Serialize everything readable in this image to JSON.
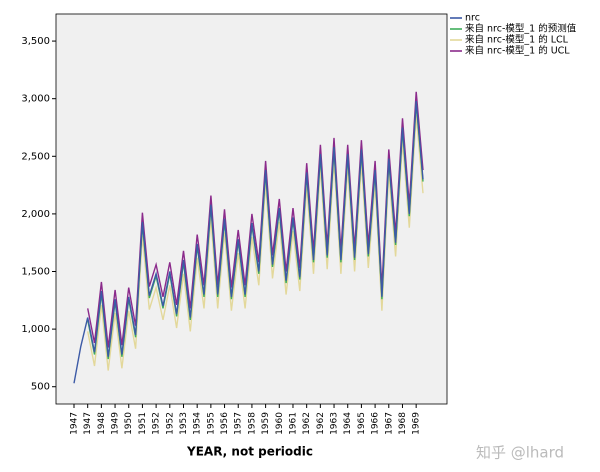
{
  "chart_data": {
    "type": "line",
    "x_label": "YEAR, not periodic",
    "watermark": "知乎 @lhard",
    "categories": [
      "1947",
      null,
      "1947",
      null,
      "1948",
      null,
      "1949",
      null,
      "1950",
      null,
      "1951",
      null,
      "1952",
      null,
      "1952",
      null,
      "1953",
      null,
      "1954",
      null,
      "1955",
      null,
      "1956",
      null,
      "1957",
      null,
      "1958",
      null,
      "1959",
      null,
      "1960",
      null,
      "1961",
      null,
      "1962",
      null,
      "1962",
      null,
      "1963",
      null,
      "1964",
      null,
      "1965",
      null,
      "1966",
      null,
      "1967",
      null,
      "1968",
      null,
      "1969",
      null
    ],
    "series": [
      {
        "name": "来自 nrc-模型_1 的 UCL",
        "color": "#8b2a8b",
        "values": [
          null,
          null,
          1180,
          880,
          1410,
          840,
          1340,
          860,
          1360,
          1030,
          2010,
          1370,
          1560,
          1280,
          1580,
          1210,
          1680,
          1180,
          1820,
          1380,
          2160,
          1380,
          2040,
          1360,
          1860,
          1380,
          2000,
          1580,
          2460,
          1640,
          2130,
          1500,
          2050,
          1530,
          2440,
          1680,
          2600,
          1720,
          2660,
          1680,
          2600,
          1700,
          2640,
          1730,
          2460,
          1360,
          2560,
          1830,
          2830,
          2080,
          3060,
          2380
        ]
      },
      {
        "name": "来自 nrc-模型_1 的 LCL",
        "color": "#e3d89a",
        "values": [
          null,
          null,
          980,
          680,
          1210,
          640,
          1140,
          660,
          1160,
          830,
          1810,
          1170,
          1360,
          1080,
          1380,
          1010,
          1480,
          980,
          1620,
          1180,
          1960,
          1180,
          1840,
          1160,
          1660,
          1180,
          1800,
          1380,
          2260,
          1440,
          1930,
          1300,
          1850,
          1330,
          2240,
          1480,
          2400,
          1520,
          2460,
          1480,
          2400,
          1500,
          2440,
          1530,
          2260,
          1160,
          2360,
          1630,
          2630,
          1880,
          2860,
          2180
        ]
      },
      {
        "name": "来自 nrc-模型_1 的预测值",
        "color": "#3fae5c",
        "values": [
          null,
          null,
          1080,
          780,
          1310,
          740,
          1240,
          760,
          1260,
          930,
          1910,
          1270,
          1460,
          1180,
          1480,
          1110,
          1580,
          1080,
          1720,
          1280,
          2060,
          1280,
          1940,
          1260,
          1760,
          1280,
          1900,
          1480,
          2360,
          1540,
          2030,
          1400,
          1950,
          1430,
          2340,
          1580,
          2500,
          1620,
          2560,
          1580,
          2500,
          1600,
          2540,
          1630,
          2360,
          1260,
          2460,
          1730,
          2730,
          1980,
          2960,
          2280
        ]
      },
      {
        "name": "nrc",
        "color": "#3c5aa6",
        "values": [
          530,
          850,
          1100,
          800,
          1330,
          760,
          1260,
          780,
          1280,
          950,
          1930,
          1290,
          1480,
          1200,
          1500,
          1130,
          1600,
          1100,
          1740,
          1300,
          2080,
          1300,
          1960,
          1280,
          1780,
          1300,
          1920,
          1500,
          2380,
          1560,
          2050,
          1420,
          1970,
          1450,
          2360,
          1600,
          2520,
          1640,
          2580,
          1600,
          2520,
          1620,
          2560,
          1650,
          2380,
          1280,
          2480,
          1750,
          2750,
          2000,
          2980,
          2300
        ]
      }
    ],
    "legend_order": [
      3,
      2,
      1,
      0
    ],
    "ylim": [
      350,
      3735
    ],
    "yticks": [
      {
        "value": 500,
        "label": "500"
      },
      {
        "value": 1000,
        "label": "1,000"
      },
      {
        "value": 1500,
        "label": "1,500"
      },
      {
        "value": 2000,
        "label": "2,000"
      },
      {
        "value": 2500,
        "label": "2,500"
      },
      {
        "value": 3000,
        "label": "3,000"
      },
      {
        "value": 3500,
        "label": "3,500"
      }
    ]
  }
}
